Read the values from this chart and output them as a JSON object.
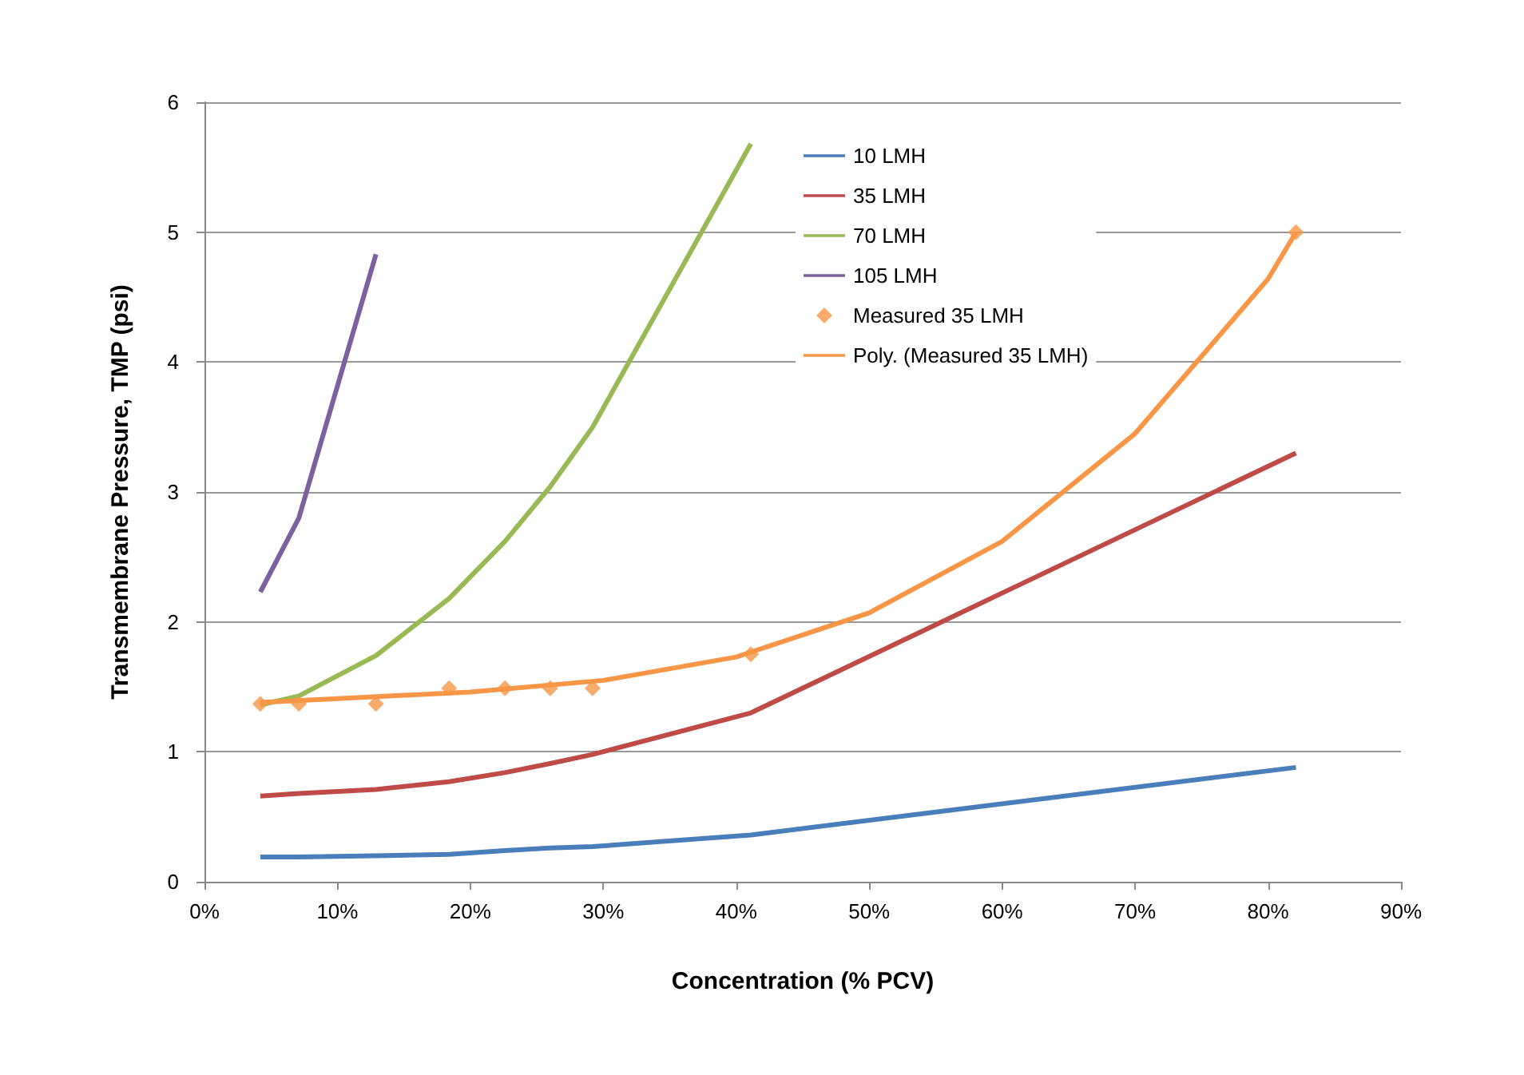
{
  "chart_data": {
    "type": "line",
    "xlabel": "Concentration (% PCV)",
    "ylabel": "Transmembrane Pressure, TMP (psi)",
    "x": [
      4.2,
      7.1,
      12.9,
      18.4,
      22.6,
      26,
      29.2,
      41.1,
      82.1
    ],
    "xlim": [
      0,
      90
    ],
    "xticks": [
      {
        "value": 0,
        "label": "0%"
      },
      {
        "value": 10,
        "label": "10%"
      },
      {
        "value": 20,
        "label": "20%"
      },
      {
        "value": 30,
        "label": "30%"
      },
      {
        "value": 40,
        "label": "40%"
      },
      {
        "value": 50,
        "label": "50%"
      },
      {
        "value": 60,
        "label": "60%"
      },
      {
        "value": 70,
        "label": "70%"
      },
      {
        "value": 80,
        "label": "80%"
      },
      {
        "value": 90,
        "label": "90%"
      }
    ],
    "ylim": [
      0,
      6
    ],
    "yticks": [
      0,
      1,
      2,
      3,
      4,
      5,
      6
    ],
    "grid": "y",
    "legend": "top right",
    "marker": "none",
    "line_style": "solid",
    "series": [
      {
        "name": "10 LMH",
        "color": "#4a7ebb",
        "values": [
          0.19,
          0.19,
          0.2,
          0.21,
          0.24,
          0.26,
          0.27,
          0.36,
          0.88
        ]
      },
      {
        "name": "35 LMH",
        "color": "#be4b48",
        "values": [
          0.66,
          0.68,
          0.71,
          0.77,
          0.84,
          0.91,
          0.98,
          1.3,
          3.3
        ]
      },
      {
        "name": "70 LMH",
        "color": "#98b954",
        "values": [
          1.36,
          1.43,
          1.74,
          2.18,
          2.62,
          3.04,
          3.5,
          5.68,
          null
        ]
      },
      {
        "name": "105 LMH",
        "color": "#7d60a0",
        "values": [
          2.23,
          2.8,
          4.83,
          null,
          null,
          null,
          null,
          null,
          null
        ]
      },
      {
        "name": "Measured 35 LMH",
        "type": "scatter",
        "marker": "diamond",
        "color": "#f79646",
        "values": [
          1.37,
          1.37,
          1.37,
          1.49,
          1.49,
          1.49,
          1.49,
          1.75,
          5.0
        ]
      },
      {
        "name": "Poly. (Measured 35 LMH)",
        "color": "#f79646",
        "x": [
          4.2,
          10,
          20,
          30,
          40,
          50,
          60,
          70,
          80,
          82.1
        ],
        "values": [
          1.38,
          1.41,
          1.46,
          1.55,
          1.73,
          2.07,
          2.62,
          3.45,
          4.64,
          5.0
        ]
      }
    ]
  }
}
